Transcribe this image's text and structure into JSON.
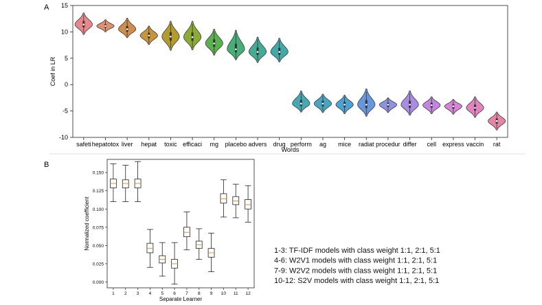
{
  "panels": {
    "a_label": "A",
    "b_label": "B"
  },
  "chart_data": [
    {
      "type": "violin",
      "title": "",
      "xlabel": "Words",
      "ylabel": "Coef in LR",
      "ylim": [
        -10,
        15
      ],
      "yticks": [
        -10,
        -5,
        0,
        5,
        10,
        15
      ],
      "categories": [
        "safeti",
        "hepatotox",
        "liver",
        "hepat",
        "toxic",
        "efficaci",
        "mg",
        "placebo",
        "advers",
        "drug",
        "perform",
        "ag",
        "mice",
        "radiat",
        "procedur",
        "differ",
        "cell",
        "express",
        "vaccin",
        "rat"
      ],
      "medians": [
        11.4,
        11.1,
        10.5,
        9.3,
        9.1,
        9.0,
        7.8,
        6.7,
        6.2,
        6.2,
        -3.6,
        -3.6,
        -3.8,
        -3.8,
        -3.8,
        -3.8,
        -3.9,
        -4.1,
        -4.4,
        -6.9
      ],
      "mins": [
        9.5,
        10.0,
        8.9,
        7.6,
        6.5,
        6.6,
        5.6,
        4.7,
        4.2,
        4.3,
        -5.2,
        -5.3,
        -5.5,
        -6.0,
        -5.3,
        -5.8,
        -5.5,
        -5.6,
        -6.2,
        -8.6
      ],
      "maxs": [
        13.6,
        12.3,
        12.6,
        11.1,
        12.0,
        12.0,
        10.5,
        10.3,
        9.0,
        8.8,
        -1.2,
        -1.8,
        -2.0,
        -0.8,
        -2.5,
        -1.2,
        -2.3,
        -2.8,
        -2.3,
        -5.2
      ],
      "colors": [
        "#e8868a",
        "#e0906b",
        "#d08e4c",
        "#c9953a",
        "#b39c2c",
        "#8aab36",
        "#5bb04f",
        "#48ae78",
        "#44ab96",
        "#43a8a8",
        "#45a9b5",
        "#47a6c2",
        "#4ba0d4",
        "#6696de",
        "#8d91e0",
        "#a98ce2",
        "#c584e1",
        "#d883d6",
        "#e283c0",
        "#e685a6"
      ]
    },
    {
      "type": "box",
      "title": "",
      "xlabel": "Separate Learner",
      "ylabel": "Normalized coefficient",
      "ylim": [
        -0.008,
        0.168
      ],
      "yticks": [
        0.0,
        0.025,
        0.05,
        0.075,
        0.1,
        0.125,
        0.15
      ],
      "ytick_labels": [
        "0.000",
        "0.025",
        "0.050",
        "0.075",
        "0.100",
        "0.125",
        "0.150"
      ],
      "categories": [
        "1",
        "2",
        "3",
        "4",
        "5",
        "6",
        "7",
        "8",
        "9",
        "10",
        "11",
        "12"
      ],
      "boxes": [
        {
          "min": 0.11,
          "q1": 0.129,
          "median": 0.135,
          "q3": 0.141,
          "max": 0.162
        },
        {
          "min": 0.11,
          "q1": 0.129,
          "median": 0.135,
          "q3": 0.14,
          "max": 0.16
        },
        {
          "min": 0.11,
          "q1": 0.129,
          "median": 0.135,
          "q3": 0.141,
          "max": 0.165
        },
        {
          "min": 0.02,
          "q1": 0.04,
          "median": 0.046,
          "q3": 0.053,
          "max": 0.072
        },
        {
          "min": 0.008,
          "q1": 0.026,
          "median": 0.031,
          "q3": 0.036,
          "max": 0.054
        },
        {
          "min": -0.003,
          "q1": 0.019,
          "median": 0.025,
          "q3": 0.031,
          "max": 0.054
        },
        {
          "min": 0.044,
          "q1": 0.062,
          "median": 0.068,
          "q3": 0.075,
          "max": 0.096
        },
        {
          "min": 0.031,
          "q1": 0.046,
          "median": 0.051,
          "q3": 0.056,
          "max": 0.073
        },
        {
          "min": 0.014,
          "q1": 0.034,
          "median": 0.04,
          "q3": 0.046,
          "max": 0.067
        },
        {
          "min": 0.089,
          "q1": 0.108,
          "median": 0.114,
          "q3": 0.121,
          "max": 0.14
        },
        {
          "min": 0.088,
          "q1": 0.106,
          "median": 0.111,
          "q3": 0.117,
          "max": 0.134
        },
        {
          "min": 0.082,
          "q1": 0.1,
          "median": 0.106,
          "q3": 0.113,
          "max": 0.132
        }
      ],
      "median_color": "#f28c28",
      "annotations": [
        "1-3: TF-IDF models with class weight 1:1, 2:1, 5:1",
        "4-6:  W2V1 models with class weight 1:1, 2:1, 5:1",
        "7-9:  W2V2 models with class weight 1:1, 2:1, 5:1",
        "10-12: S2V models with class weight 1:1, 2:1, 5:1"
      ]
    }
  ]
}
